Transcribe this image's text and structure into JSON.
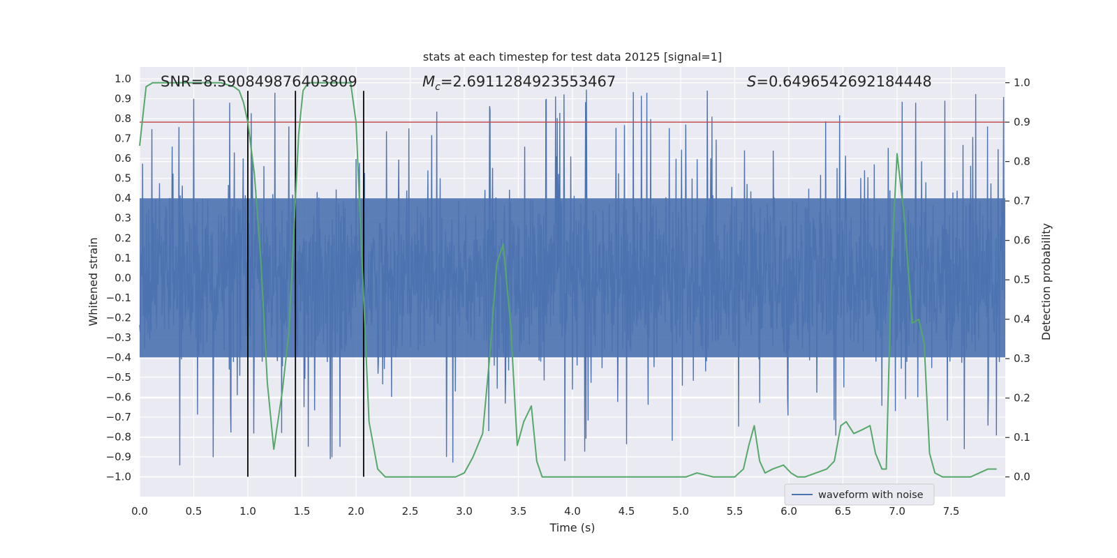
{
  "chart_data": {
    "type": "line",
    "title": "stats at each timestep for test data 20125 [signal=1]",
    "xlabel": "Time (s)",
    "ylabel": "Whitened strain",
    "y2label": "Detection probability",
    "xlim": [
      0.0,
      8.0
    ],
    "ylim": [
      -1.1,
      1.06
    ],
    "y2lim": [
      -0.05,
      1.04
    ],
    "x_ticks": [
      0.0,
      0.5,
      1.0,
      1.5,
      2.0,
      2.5,
      3.0,
      3.5,
      4.0,
      4.5,
      5.0,
      5.5,
      6.0,
      6.5,
      7.0,
      7.5
    ],
    "x_tick_labels": [
      "0.0",
      "0.5",
      "1.0",
      "1.5",
      "2.0",
      "2.5",
      "3.0",
      "3.5",
      "4.0",
      "4.5",
      "5.0",
      "5.5",
      "6.0",
      "6.5",
      "7.0",
      "7.5"
    ],
    "y_ticks": [
      1.0,
      0.9,
      0.8,
      0.7,
      0.6,
      0.5,
      0.4,
      0.3,
      0.2,
      0.1,
      0.0,
      -0.1,
      -0.2,
      -0.3,
      -0.4,
      -0.5,
      -0.6,
      -0.7,
      -0.8,
      -0.9,
      -1.0
    ],
    "y_tick_labels": [
      "1.0",
      "0.9",
      "0.8",
      "0.7",
      "0.6",
      "0.5",
      "0.4",
      "0.3",
      "0.2",
      "0.1",
      "0.0",
      "−0.1",
      "−0.2",
      "−0.3",
      "−0.4",
      "−0.5",
      "−0.6",
      "−0.7",
      "−0.8",
      "−0.9",
      "−1.0"
    ],
    "y2_ticks": [
      1.0,
      0.9,
      0.8,
      0.7,
      0.6,
      0.5,
      0.4,
      0.3,
      0.2,
      0.1,
      0.0
    ],
    "y2_tick_labels": [
      "1.0",
      "0.9",
      "0.8",
      "0.7",
      "0.6",
      "0.5",
      "0.4",
      "0.3",
      "0.2",
      "0.1",
      "0.0"
    ],
    "grid": true,
    "legend_placement": "lower-right",
    "annotations": {
      "snr": "SNR=8.590849876403809",
      "mc_prefix": "M",
      "mc_sub": "c",
      "mc_value": "=2.6911284923553467",
      "s_prefix": "S",
      "s_value": "=0.6496542692184448"
    },
    "series": [
      {
        "name": "waveform with noise",
        "kind": "noise",
        "color": "#4c72b0",
        "sample_rate": 256,
        "core_amplitude": 0.4,
        "peak_amplitude": 0.95
      },
      {
        "kind": "probability",
        "color": "#55a868",
        "x": [
          0.0,
          0.06,
          0.12,
          0.25,
          0.5,
          0.75,
          0.87,
          0.92,
          0.96,
          1.0,
          1.06,
          1.12,
          1.18,
          1.24,
          1.32,
          1.38,
          1.43,
          1.47,
          1.51,
          1.56,
          1.62,
          1.75,
          1.87,
          1.95,
          2.0,
          2.06,
          2.12,
          2.2,
          2.27,
          2.35,
          2.5,
          2.65,
          2.8,
          2.92,
          3.0,
          3.08,
          3.17,
          3.24,
          3.3,
          3.36,
          3.43,
          3.49,
          3.55,
          3.62,
          3.67,
          3.72,
          3.82,
          3.95,
          4.05,
          4.12,
          4.2,
          4.3,
          4.5,
          4.7,
          4.9,
          5.05,
          5.15,
          5.3,
          5.45,
          5.5,
          5.58,
          5.63,
          5.68,
          5.73,
          5.78,
          5.85,
          5.95,
          6.02,
          6.08,
          6.15,
          6.25,
          6.35,
          6.42,
          6.48,
          6.53,
          6.6,
          6.68,
          6.75,
          6.8,
          6.86,
          6.9,
          6.95,
          7.0,
          7.07,
          7.14,
          7.2,
          7.25,
          7.3,
          7.35,
          7.42,
          7.5,
          7.6,
          7.68,
          7.76,
          7.84,
          7.92
        ],
        "y": [
          0.84,
          0.99,
          1.0,
          1.0,
          1.0,
          1.0,
          0.99,
          0.98,
          0.95,
          0.9,
          0.77,
          0.55,
          0.24,
          0.07,
          0.22,
          0.37,
          0.65,
          0.87,
          0.98,
          1.0,
          1.0,
          1.0,
          1.0,
          1.0,
          0.9,
          0.52,
          0.14,
          0.02,
          0.0,
          0.0,
          0.0,
          0.0,
          0.0,
          0.0,
          0.01,
          0.05,
          0.11,
          0.32,
          0.54,
          0.59,
          0.38,
          0.08,
          0.14,
          0.18,
          0.04,
          0.0,
          0.0,
          0.0,
          0.0,
          0.0,
          0.0,
          0.0,
          0.0,
          0.0,
          0.0,
          0.0,
          0.01,
          0.0,
          0.0,
          0.0,
          0.02,
          0.08,
          0.13,
          0.04,
          0.01,
          0.02,
          0.03,
          0.01,
          0.0,
          0.0,
          0.01,
          0.02,
          0.04,
          0.13,
          0.14,
          0.11,
          0.12,
          0.13,
          0.06,
          0.02,
          0.02,
          0.55,
          0.82,
          0.65,
          0.39,
          0.4,
          0.34,
          0.06,
          0.01,
          0.0,
          0.0,
          0.0,
          0.0,
          0.01,
          0.02,
          0.02
        ]
      },
      {
        "kind": "threshold",
        "color": "#c44e52",
        "y2": 0.9
      },
      {
        "kind": "vertical-markers",
        "color": "#000000",
        "x": [
          1.0,
          1.44,
          2.07
        ],
        "y_from": -1.0,
        "y_to": 0.94
      }
    ]
  }
}
